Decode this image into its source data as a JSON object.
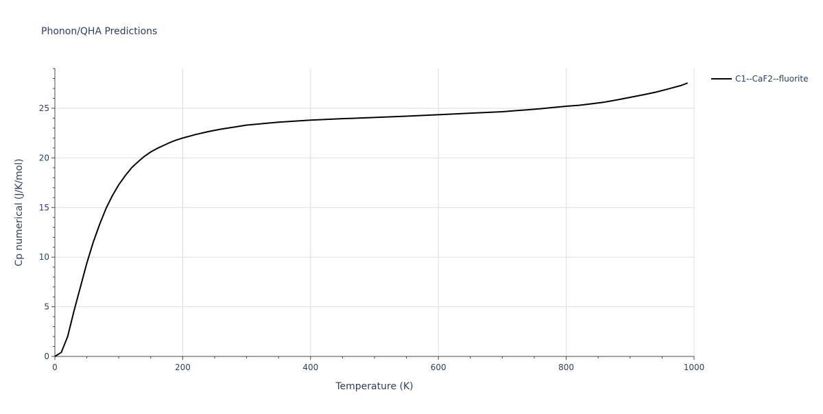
{
  "chart_data": {
    "type": "line",
    "title": "Phonon/QHA Predictions",
    "xlabel": "Temperature (K)",
    "ylabel": "Cp numerical (J/K/mol)",
    "xlim": [
      0,
      1000
    ],
    "ylim": [
      0,
      29
    ],
    "x_ticks": [
      0,
      200,
      400,
      600,
      800,
      1000
    ],
    "y_ticks": [
      0,
      5,
      10,
      15,
      20,
      25
    ],
    "grid": true,
    "legend_position": "top-right",
    "series": [
      {
        "name": "C1--CaF2--fluorite",
        "color": "#000000",
        "x": [
          0,
          10,
          20,
          30,
          40,
          50,
          60,
          70,
          80,
          90,
          100,
          110,
          120,
          130,
          140,
          150,
          160,
          170,
          180,
          190,
          200,
          220,
          240,
          260,
          280,
          300,
          350,
          400,
          450,
          500,
          550,
          600,
          650,
          700,
          720,
          740,
          760,
          780,
          800,
          820,
          840,
          860,
          880,
          900,
          920,
          940,
          960,
          980,
          990
        ],
        "y": [
          0,
          0.4,
          2.0,
          4.6,
          7.0,
          9.4,
          11.5,
          13.3,
          14.9,
          16.2,
          17.3,
          18.2,
          19.0,
          19.6,
          20.15,
          20.6,
          20.95,
          21.25,
          21.55,
          21.8,
          22.0,
          22.35,
          22.65,
          22.9,
          23.1,
          23.3,
          23.6,
          23.8,
          23.95,
          24.07,
          24.2,
          24.35,
          24.5,
          24.65,
          24.75,
          24.85,
          24.95,
          25.08,
          25.2,
          25.3,
          25.45,
          25.62,
          25.85,
          26.1,
          26.35,
          26.62,
          26.95,
          27.3,
          27.55
        ]
      }
    ]
  }
}
